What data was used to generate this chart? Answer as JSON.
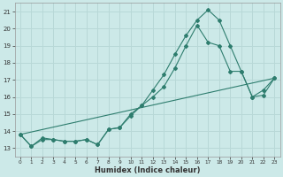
{
  "xlabel": "Humidex (Indice chaleur)",
  "background_color": "#cce9e8",
  "grid_color": "#b8d8d7",
  "line_color": "#2e7d6e",
  "xlim": [
    -0.5,
    23.5
  ],
  "ylim": [
    12.5,
    21.5
  ],
  "xticks": [
    0,
    1,
    2,
    3,
    4,
    5,
    6,
    7,
    8,
    9,
    10,
    11,
    12,
    13,
    14,
    15,
    16,
    17,
    18,
    19,
    20,
    21,
    22,
    23
  ],
  "yticks": [
    13,
    14,
    15,
    16,
    17,
    18,
    19,
    20,
    21
  ],
  "series1_x": [
    0,
    1,
    2,
    3,
    4,
    5,
    6,
    7,
    8,
    9,
    10,
    11,
    12,
    13,
    14,
    15,
    16,
    17,
    18,
    19,
    20,
    21,
    22,
    23
  ],
  "series1_y": [
    13.8,
    13.1,
    13.6,
    13.5,
    13.4,
    13.4,
    13.5,
    13.2,
    14.1,
    14.2,
    14.9,
    15.5,
    16.4,
    17.3,
    18.5,
    19.6,
    20.5,
    21.1,
    20.5,
    19.0,
    17.5,
    16.0,
    16.1,
    17.1
  ],
  "series2_x": [
    0,
    1,
    2,
    3,
    4,
    5,
    6,
    7,
    8,
    9,
    10,
    11,
    12,
    13,
    14,
    15,
    16,
    17,
    18,
    19,
    20,
    21,
    22,
    23
  ],
  "series2_y": [
    13.8,
    13.1,
    13.5,
    13.5,
    13.4,
    13.4,
    13.5,
    13.2,
    14.1,
    14.2,
    15.0,
    15.5,
    16.0,
    16.6,
    17.7,
    19.0,
    20.2,
    19.2,
    19.0,
    17.5,
    17.5,
    16.0,
    16.4,
    17.1
  ],
  "series3_x": [
    0,
    23
  ],
  "series3_y": [
    13.8,
    17.1
  ]
}
